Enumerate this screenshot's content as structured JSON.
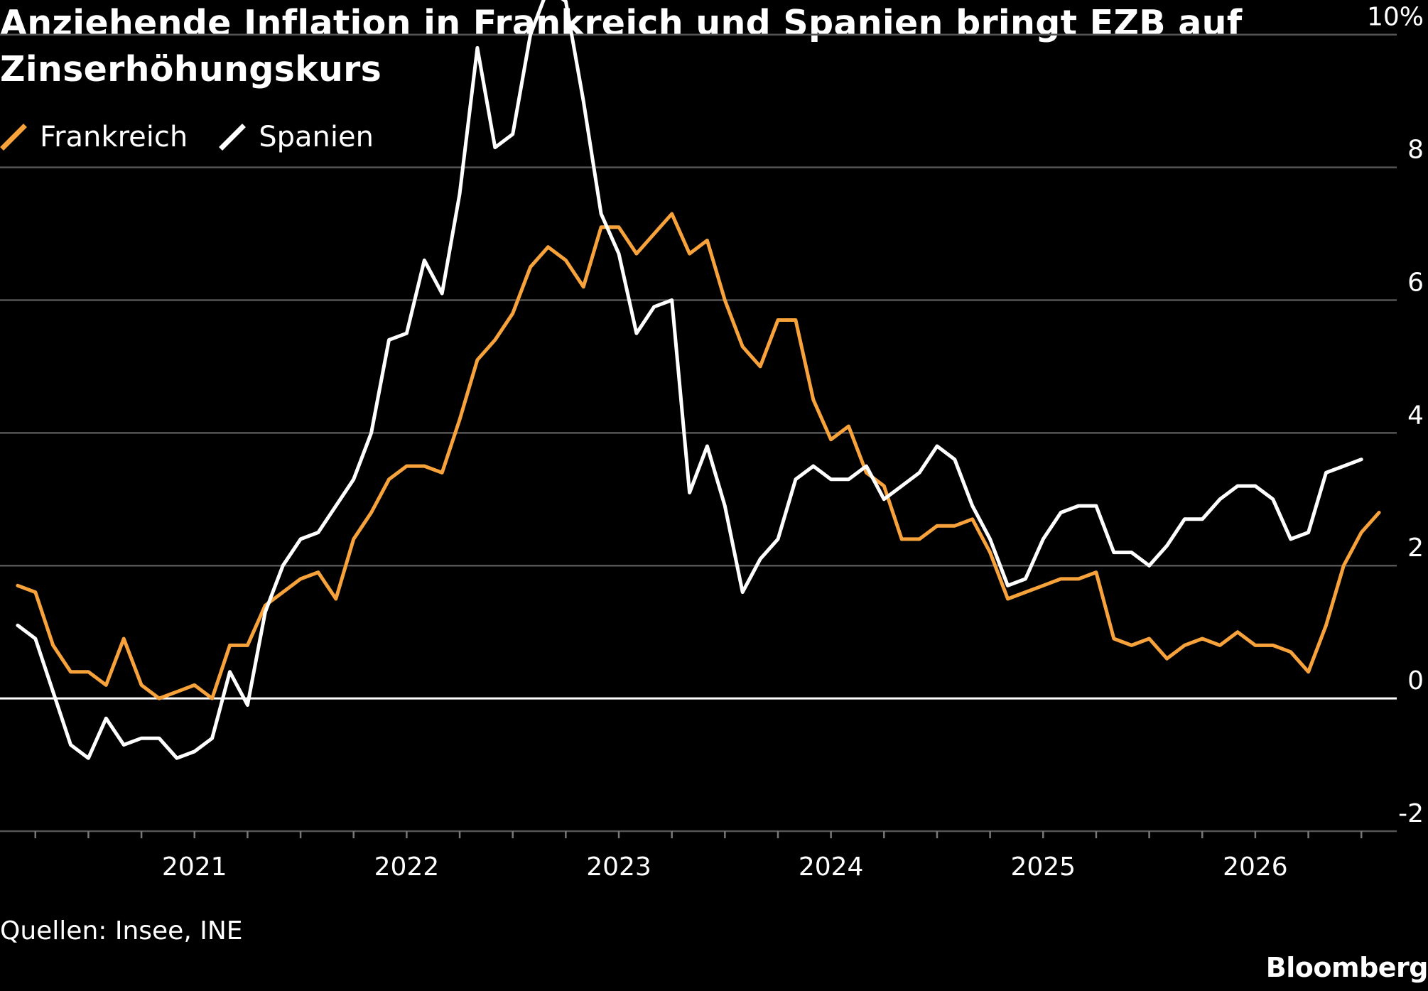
{
  "title": "Anziehende Inflation in Frankreich und Spanien bringt EZB auf Zinserhöhungskurs",
  "source": "Quellen: Insee, INE",
  "logo": "Bloomberg",
  "colors": {
    "background": "#000000",
    "frankreich": "#f7a23b",
    "spanien": "#ffffff",
    "grid": "#555555",
    "zero_line": "#ffffff"
  },
  "chart_data": {
    "type": "line",
    "title": "Anziehende Inflation in Frankreich und Spanien bringt EZB auf Zinserhöhungskurs",
    "x_start": "2020-03",
    "x_step": "1 month",
    "xlim": [
      "2020-02",
      "2026-09"
    ],
    "x_ticks": [
      "2021",
      "2022",
      "2023",
      "2024",
      "2025",
      "2026"
    ],
    "ylim": [
      -2,
      10.5
    ],
    "y_ticks": [
      10,
      8,
      6,
      4,
      2,
      0,
      -2
    ],
    "y_tick_labels": [
      "10%",
      "8",
      "6",
      "4",
      "2",
      "0",
      "-2"
    ],
    "y_unit": "%",
    "grid": "horizontal",
    "legend_position": "top-left",
    "series": [
      {
        "name": "Frankreich",
        "color": "#f7a23b",
        "values": [
          1.7,
          1.6,
          0.8,
          0.4,
          0.4,
          0.2,
          0.9,
          0.2,
          0.0,
          0.1,
          0.2,
          0.0,
          0.8,
          0.8,
          1.4,
          1.6,
          1.8,
          1.9,
          1.5,
          2.4,
          2.8,
          3.3,
          3.5,
          3.5,
          3.4,
          4.2,
          5.1,
          5.4,
          5.8,
          6.5,
          6.8,
          6.6,
          6.2,
          7.1,
          7.1,
          6.7,
          7.0,
          7.3,
          6.7,
          6.9,
          6.0,
          5.3,
          5.0,
          5.7,
          5.7,
          4.5,
          3.9,
          4.1,
          3.4,
          3.2,
          2.4,
          2.4,
          2.6,
          2.6,
          2.7,
          2.2,
          1.5,
          1.6,
          1.7,
          1.8,
          1.8,
          1.9,
          0.9,
          0.8,
          0.9,
          0.6,
          0.8,
          0.9,
          0.8,
          1.0,
          0.8,
          0.8,
          0.7,
          0.4,
          1.1,
          2.0,
          2.5,
          2.8
        ]
      },
      {
        "name": "Spanien",
        "color": "#ffffff",
        "values": [
          1.1,
          0.9,
          0.1,
          -0.7,
          -0.9,
          -0.3,
          -0.7,
          -0.6,
          -0.6,
          -0.9,
          -0.8,
          -0.6,
          0.4,
          -0.1,
          1.3,
          2.0,
          2.4,
          2.5,
          2.9,
          3.3,
          4.0,
          5.4,
          5.5,
          6.6,
          6.1,
          7.6,
          9.8,
          8.3,
          8.5,
          10.0,
          10.7,
          10.5,
          9.0,
          7.3,
          6.7,
          5.5,
          5.9,
          6.0,
          3.1,
          3.8,
          2.9,
          1.6,
          2.1,
          2.4,
          3.3,
          3.5,
          3.3,
          3.3,
          3.5,
          3.0,
          3.2,
          3.4,
          3.8,
          3.6,
          2.9,
          2.4,
          1.7,
          1.8,
          2.4,
          2.8,
          2.9,
          2.9,
          2.2,
          2.2,
          2.0,
          2.3,
          2.7,
          2.7,
          3.0,
          3.2,
          3.2,
          3.0,
          2.4,
          2.5,
          3.4,
          3.5,
          3.6
        ]
      }
    ]
  }
}
